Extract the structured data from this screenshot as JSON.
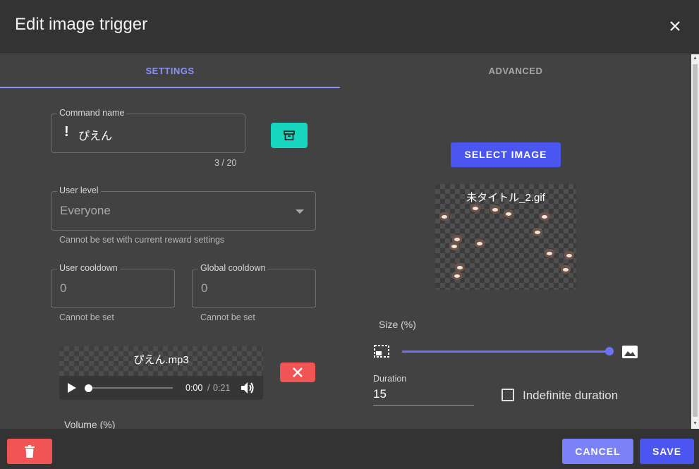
{
  "dialog": {
    "title": "Edit image trigger",
    "close_icon": "close-icon"
  },
  "tabs": [
    {
      "label": "SETTINGS",
      "active": true
    },
    {
      "label": "ADVANCED",
      "active": false
    }
  ],
  "settings": {
    "command_name": {
      "label": "Command name",
      "prefix": "!",
      "value": "ぴえん",
      "counter": "3 / 20"
    },
    "user_level": {
      "label": "User level",
      "value": "Everyone",
      "hint": "Cannot be set with current reward settings"
    },
    "user_cooldown": {
      "label": "User cooldown",
      "value": "0",
      "hint": "Cannot be set"
    },
    "global_cooldown": {
      "label": "Global cooldown",
      "value": "0",
      "hint": "Cannot be set"
    },
    "audio": {
      "file_name": "ぴえん.mp3",
      "current_time": "0:00",
      "separator": "/",
      "duration": "0:21",
      "progress": 0.0
    },
    "volume_label": "Volume (%)"
  },
  "image": {
    "select_label": "SELECT IMAGE",
    "file_name": "未タイトル_2.gif",
    "size_label": "Size (%)",
    "size_value_fraction": 1.0,
    "duration_label": "Duration",
    "duration_value": "15",
    "indefinite_label": "Indefinite duration",
    "indefinite_checked": false
  },
  "footer": {
    "cancel_label": "CANCEL",
    "save_label": "SAVE"
  },
  "colors": {
    "accent": "#4b55f0",
    "accent_light": "#7b82f7",
    "danger": "#f05454",
    "teal": "#16d6c0",
    "tab_active": "#8c93f5"
  }
}
